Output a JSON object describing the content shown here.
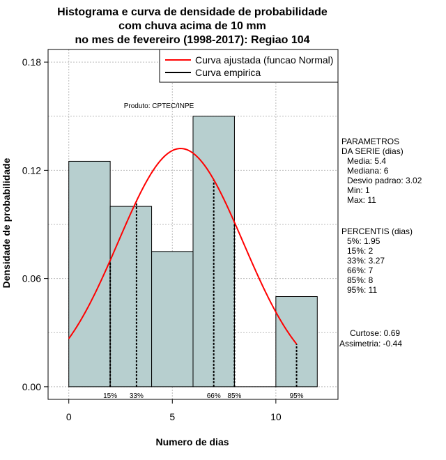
{
  "title_lines": [
    "Histograma e curva de densidade de probabilidade",
    "com chuva acima de 10 mm",
    "no mes de fevereiro (1998-2017): Regiao 104"
  ],
  "xlabel": "Numero de dias",
  "ylabel": "Densidade de probabilidade",
  "producer": "Produto: CPTEC/INPE",
  "legend": [
    {
      "label": "Curva ajustada (funcao Normal)",
      "color": "#ff0000"
    },
    {
      "label": "Curva empirica",
      "color": "#000000"
    }
  ],
  "parameters": {
    "heading": [
      "PARAMETROS",
      "DA SERIE (dias)"
    ],
    "lines": [
      "Media: 5.4",
      "Mediana: 6",
      "Desvio padrao: 3.02",
      "Min: 1",
      "Max: 11"
    ]
  },
  "percentiles": {
    "heading": "PERCENTIS (dias)",
    "lines": [
      "5%: 1.95",
      "15%: 2",
      "33%: 3.27",
      "66%: 7",
      "85%: 8",
      "95%: 11"
    ]
  },
  "shape": [
    "Curtose: 0.69",
    "Assimetria: -0.44"
  ],
  "colors": {
    "bar_fill": "#b7cfcf",
    "curve": "#ff0000",
    "grid": "#bbbbbb"
  },
  "chart_data": {
    "type": "bar",
    "bins": [
      {
        "x0": 0,
        "x1": 2,
        "density": 0.125
      },
      {
        "x0": 2,
        "x1": 4,
        "density": 0.1
      },
      {
        "x0": 4,
        "x1": 6,
        "density": 0.075
      },
      {
        "x0": 6,
        "x1": 8,
        "density": 0.15
      },
      {
        "x0": 8,
        "x1": 10,
        "density": 0.0
      },
      {
        "x0": 10,
        "x1": 12,
        "density": 0.05
      }
    ],
    "normal_curve": {
      "mean": 5.4,
      "sd": 3.02,
      "x_range": [
        0,
        11
      ]
    },
    "percentile_lines": [
      {
        "x": 2,
        "label": "15%"
      },
      {
        "x": 3.27,
        "label": "33%"
      },
      {
        "x": 7,
        "label": "66%"
      },
      {
        "x": 8,
        "label": "85%"
      },
      {
        "x": 11,
        "label": "95%"
      }
    ],
    "xlim": [
      -1,
      13
    ],
    "ylim": [
      -0.007,
      0.187
    ],
    "xticks": [
      0,
      5,
      10
    ],
    "yticks": [
      0.0,
      0.06,
      0.12,
      0.18
    ],
    "ytick_labels": [
      "0.00",
      "0.06",
      "0.12",
      "0.18"
    ],
    "grid": true,
    "legend_position": "top-right"
  }
}
